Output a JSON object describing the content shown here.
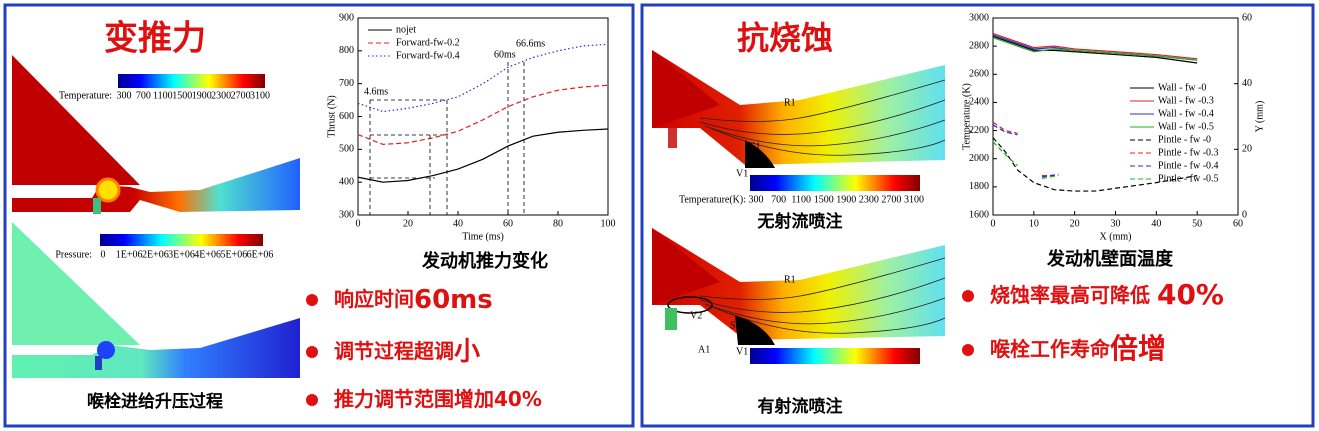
{
  "left": {
    "title": "变推力",
    "temperature_legend": {
      "label": "Temperature:",
      "ticks": [
        "300",
        "700",
        "1100",
        "1500",
        "1900",
        "2300",
        "2700",
        "3100"
      ]
    },
    "pressure_legend": {
      "label": "Pressure:",
      "ticks": [
        "0",
        "1E+06",
        "2E+06",
        "3E+06",
        "4E+06",
        "5E+06",
        "6E+06"
      ]
    },
    "caption": "喉栓进给升压过程",
    "chart_caption": "发动机推力变化",
    "bullets": [
      {
        "text": "响应时间",
        "emphasis": "60ms"
      },
      {
        "text": "调节过程超调",
        "emphasis": "小"
      },
      {
        "text": "推力调节范围增加40%"
      }
    ],
    "chart_data": {
      "type": "line",
      "xlabel": "Time (ms)",
      "ylabel": "Thrust (N)",
      "x": [
        0,
        10,
        20,
        30,
        40,
        50,
        60,
        70,
        80,
        90,
        100
      ],
      "xlim": [
        0,
        100
      ],
      "xticks": [
        0,
        20,
        40,
        60,
        80,
        100
      ],
      "ylim": [
        300,
        900
      ],
      "yticks": [
        300,
        400,
        500,
        600,
        700,
        800,
        900
      ],
      "annotations": [
        "4.6ms",
        "60ms",
        "66.6ms"
      ],
      "series": [
        {
          "name": "nojet",
          "color": "#000000",
          "style": "solid",
          "values": [
            415,
            400,
            405,
            420,
            440,
            470,
            510,
            540,
            552,
            558,
            562
          ]
        },
        {
          "name": "Forward-fw-0.2",
          "color": "#e02020",
          "style": "dashed",
          "values": [
            545,
            515,
            520,
            535,
            555,
            590,
            630,
            660,
            680,
            690,
            695
          ]
        },
        {
          "name": "Forward-fw-0.4",
          "color": "#2030d0",
          "style": "dotted",
          "values": [
            640,
            615,
            625,
            640,
            660,
            700,
            750,
            780,
            800,
            815,
            820
          ]
        }
      ]
    }
  },
  "right": {
    "title": "抗烧蚀",
    "temperature_legend": {
      "label": "Temperature(K):",
      "ticks": [
        "300",
        "700",
        "1100",
        "1500",
        "1900",
        "2300",
        "2700",
        "3100"
      ]
    },
    "labels_top": [
      "R1",
      "S1",
      "V1"
    ],
    "labels_bottom": [
      "R1",
      "V2",
      "S1",
      "A1",
      "V1"
    ],
    "caption_top": "无射流喷注",
    "caption_bottom": "有射流喷注",
    "chart_caption": "发动机壁面温度",
    "bullets": [
      {
        "text": "烧蚀率最高可降低 ",
        "emphasis": "40%"
      },
      {
        "text": "喉栓工作寿命",
        "emphasis": "倍增"
      }
    ],
    "chart_data": {
      "type": "line",
      "xlabel": "X (mm)",
      "ylabel": "Temperature (K)",
      "y2label": "Y (mm)",
      "x": [
        0,
        5,
        10,
        15,
        20,
        30,
        40,
        50
      ],
      "xlim": [
        0,
        60
      ],
      "xticks": [
        0,
        10,
        20,
        30,
        40,
        50,
        60
      ],
      "ylim": [
        1600,
        3000
      ],
      "yticks": [
        1600,
        1800,
        2000,
        2200,
        2400,
        2600,
        2800,
        3000
      ],
      "y2lim": [
        0,
        60
      ],
      "y2ticks": [
        0,
        20,
        40,
        60
      ],
      "series": [
        {
          "name": "Wall - fw -0",
          "color": "#000000",
          "style": "solid",
          "values": [
            2870,
            2820,
            2770,
            2770,
            2760,
            2740,
            2720,
            2680
          ]
        },
        {
          "name": "Wall - fw -0.3",
          "color": "#e02020",
          "style": "solid",
          "values": [
            2890,
            2840,
            2790,
            2800,
            2780,
            2760,
            2740,
            2710
          ]
        },
        {
          "name": "Wall - fw -0.4",
          "color": "#2030d0",
          "style": "solid",
          "values": [
            2880,
            2830,
            2780,
            2790,
            2770,
            2750,
            2730,
            2700
          ]
        },
        {
          "name": "Wall - fw -0.5",
          "color": "#20b020",
          "style": "solid",
          "values": [
            2860,
            2810,
            2760,
            2780,
            2770,
            2750,
            2730,
            2700
          ]
        },
        {
          "name": "Pintle - fw -0",
          "color": "#000000",
          "style": "dashed",
          "x": [
            0,
            3,
            6,
            10,
            15,
            20,
            25,
            30,
            40,
            50
          ],
          "values": [
            2150,
            2050,
            1920,
            1830,
            1780,
            1770,
            1770,
            1790,
            1830,
            1880
          ]
        },
        {
          "name": "Pintle - fw -0.3",
          "color": "#e02020",
          "style": "dashed",
          "x": [
            0,
            3,
            6,
            8,
            12,
            16
          ],
          "values": [
            2260,
            2200,
            2180,
            null,
            1880,
            1880
          ]
        },
        {
          "name": "Pintle - fw -0.4",
          "color": "#2030d0",
          "style": "dashed",
          "x": [
            0,
            3,
            6,
            8,
            12,
            16
          ],
          "values": [
            2240,
            2190,
            2170,
            null,
            1870,
            1890
          ]
        },
        {
          "name": "Pintle - fw -0.5",
          "color": "#20b020",
          "style": "dashed",
          "x": [
            0,
            3,
            6,
            8,
            12,
            16
          ],
          "values": [
            2120,
            2030,
            1950,
            null,
            1860,
            1880
          ]
        }
      ]
    }
  }
}
